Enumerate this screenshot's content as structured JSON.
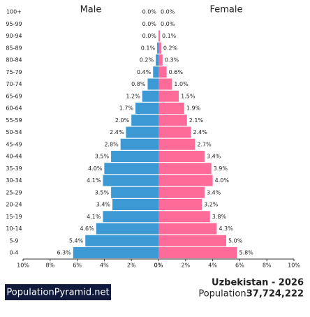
{
  "chart_data": {
    "type": "pyramid",
    "categories": [
      "100+",
      "95-99",
      "90-94",
      "85-89",
      "80-84",
      "75-79",
      "70-74",
      "65-69",
      "60-64",
      "55-59",
      "50-54",
      "45-49",
      "40-44",
      "35-39",
      "30-34",
      "25-29",
      "20-24",
      "15-19",
      "10-14",
      "5-9",
      "0-4"
    ],
    "series": [
      {
        "name": "Male",
        "color": "#3d99d3",
        "values": [
          0.0,
          0.0,
          0.0,
          0.1,
          0.2,
          0.4,
          0.8,
          1.2,
          1.7,
          2.0,
          2.4,
          2.8,
          3.5,
          4.0,
          4.1,
          3.5,
          3.4,
          4.1,
          4.6,
          5.4,
          6.3
        ],
        "value_labels": [
          "0.0%",
          "0.0%",
          "0.0%",
          "0.1%",
          "0.2%",
          "0.4%",
          "0.8%",
          "1.2%",
          "1.7%",
          "2.0%",
          "2.4%",
          "2.8%",
          "3.5%",
          "4.0%",
          "4.1%",
          "3.5%",
          "3.4%",
          "4.1%",
          "4.6%",
          "5.4%",
          "6.3%"
        ]
      },
      {
        "name": "Female",
        "color": "#ff6b98",
        "values": [
          0.0,
          0.0,
          0.1,
          0.2,
          0.3,
          0.6,
          1.0,
          1.5,
          1.9,
          2.1,
          2.4,
          2.7,
          3.4,
          3.9,
          4.0,
          3.4,
          3.2,
          3.8,
          4.3,
          5.0,
          5.8
        ],
        "value_labels": [
          "0.0%",
          "0.0%",
          "0.1%",
          "0.2%",
          "0.3%",
          "0.6%",
          "1.0%",
          "1.5%",
          "1.9%",
          "2.1%",
          "2.4%",
          "2.7%",
          "3.4%",
          "3.9%",
          "4.0%",
          "3.4%",
          "3.2%",
          "3.8%",
          "4.3%",
          "5.0%",
          "5.8%"
        ]
      }
    ],
    "xlim": [
      0,
      10
    ],
    "xticks": [
      {
        "value": 0,
        "label": "0%"
      },
      {
        "value": 2,
        "label": "2%"
      },
      {
        "value": 4,
        "label": "4%"
      },
      {
        "value": 6,
        "label": "6%"
      },
      {
        "value": 8,
        "label": "8%"
      },
      {
        "value": 10,
        "label": "10%"
      }
    ],
    "logo": "PopulationPyramid.net",
    "country_title": "Uzbekistan - 2026",
    "population_label": "Population:",
    "population": "37,724,222"
  }
}
